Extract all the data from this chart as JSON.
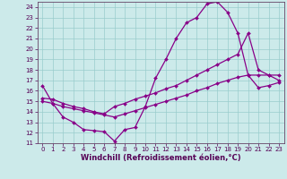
{
  "xlabel": "Windchill (Refroidissement éolien,°C)",
  "bg_color": "#cceaea",
  "line_color": "#880088",
  "grid_color": "#99cccc",
  "xlim": [
    -0.5,
    23.5
  ],
  "ylim": [
    11,
    24.5
  ],
  "xticks": [
    0,
    1,
    2,
    3,
    4,
    5,
    6,
    7,
    8,
    9,
    10,
    11,
    12,
    13,
    14,
    15,
    16,
    17,
    18,
    19,
    20,
    21,
    22,
    23
  ],
  "yticks": [
    11,
    12,
    13,
    14,
    15,
    16,
    17,
    18,
    19,
    20,
    21,
    22,
    23,
    24
  ],
  "line1_x": [
    0,
    1,
    2,
    3,
    4,
    5,
    6,
    7,
    8,
    9,
    10,
    11,
    12,
    13,
    14,
    15,
    16,
    17,
    18,
    19,
    20,
    21,
    22,
    23
  ],
  "line1_y": [
    16.5,
    14.8,
    13.5,
    13.0,
    12.3,
    12.2,
    12.1,
    11.2,
    12.3,
    12.5,
    14.5,
    17.2,
    19.0,
    21.0,
    22.5,
    23.0,
    24.3,
    24.5,
    23.5,
    21.5,
    17.5,
    17.5,
    17.5,
    17.5
  ],
  "line2_x": [
    0,
    1,
    2,
    3,
    4,
    5,
    6,
    7,
    8,
    9,
    10,
    11,
    12,
    13,
    14,
    15,
    16,
    17,
    18,
    19,
    20,
    21,
    22,
    23
  ],
  "line2_y": [
    15.3,
    15.2,
    14.8,
    14.5,
    14.3,
    14.0,
    13.8,
    14.5,
    14.8,
    15.2,
    15.5,
    15.8,
    16.2,
    16.5,
    17.0,
    17.5,
    18.0,
    18.5,
    19.0,
    19.5,
    21.5,
    18.0,
    17.5,
    17.0
  ],
  "line3_x": [
    0,
    1,
    2,
    3,
    4,
    5,
    6,
    7,
    8,
    9,
    10,
    11,
    12,
    13,
    14,
    15,
    16,
    17,
    18,
    19,
    20,
    21,
    22,
    23
  ],
  "line3_y": [
    15.0,
    14.8,
    14.5,
    14.3,
    14.1,
    13.9,
    13.7,
    13.5,
    13.8,
    14.1,
    14.4,
    14.7,
    15.0,
    15.3,
    15.6,
    16.0,
    16.3,
    16.7,
    17.0,
    17.3,
    17.5,
    16.3,
    16.5,
    16.8
  ],
  "marker": "D",
  "markersize": 2.0,
  "linewidth": 0.9,
  "tick_fontsize": 5.0,
  "label_fontsize": 6.0
}
